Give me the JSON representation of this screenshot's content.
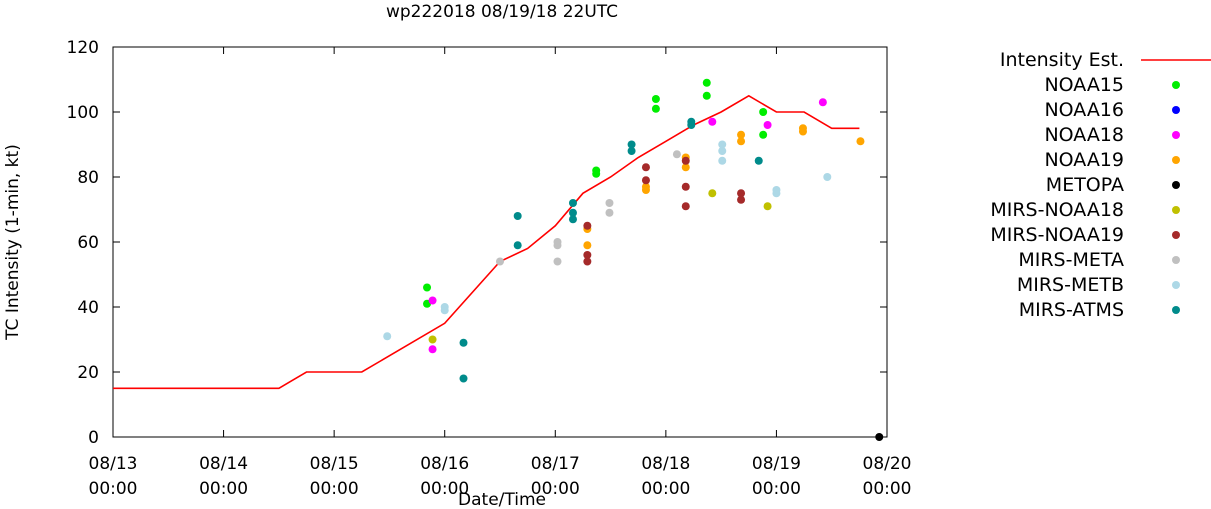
{
  "chart_data": {
    "type": "scatter",
    "title": "wp222018 08/19/18 22UTC",
    "xlabel": "Date/Time",
    "ylabel": "TC Intensity (1-min, kt)",
    "xlim": [
      0,
      7
    ],
    "ylim": [
      0,
      120
    ],
    "x_unit": "days since 08/13 00:00",
    "yticks": [
      0,
      20,
      40,
      60,
      80,
      100,
      120
    ],
    "xticks": [
      {
        "x": 0,
        "date": "08/13",
        "time": "00:00"
      },
      {
        "x": 1,
        "date": "08/14",
        "time": "00:00"
      },
      {
        "x": 2,
        "date": "08/15",
        "time": "00:00"
      },
      {
        "x": 3,
        "date": "08/16",
        "time": "00:00"
      },
      {
        "x": 4,
        "date": "08/17",
        "time": "00:00"
      },
      {
        "x": 5,
        "date": "08/18",
        "time": "00:00"
      },
      {
        "x": 6,
        "date": "08/19",
        "time": "00:00"
      },
      {
        "x": 7,
        "date": "08/20",
        "time": "00:00"
      }
    ],
    "grid": false,
    "legend_position": "right",
    "line": {
      "name": "Intensity Est.",
      "color": "#ff0000",
      "points": [
        [
          0,
          15
        ],
        [
          1.5,
          15
        ],
        [
          1.75,
          20
        ],
        [
          2.25,
          20
        ],
        [
          3.0,
          35
        ],
        [
          3.5,
          54
        ],
        [
          3.75,
          58
        ],
        [
          4.0,
          65
        ],
        [
          4.25,
          75
        ],
        [
          4.5,
          80
        ],
        [
          4.75,
          86
        ],
        [
          5.0,
          91
        ],
        [
          5.25,
          96
        ],
        [
          5.5,
          100
        ],
        [
          5.75,
          105
        ],
        [
          6.0,
          100
        ],
        [
          6.25,
          100
        ],
        [
          6.5,
          95
        ],
        [
          6.75,
          95
        ]
      ]
    },
    "series": [
      {
        "name": "NOAA15",
        "color": "#00ee00",
        "points": [
          [
            2.84,
            46
          ],
          [
            2.84,
            41
          ],
          [
            4.37,
            82
          ],
          [
            4.37,
            81
          ],
          [
            4.91,
            104
          ],
          [
            4.91,
            101
          ],
          [
            5.37,
            109
          ],
          [
            5.37,
            105
          ],
          [
            5.88,
            100
          ],
          [
            5.88,
            93
          ]
        ]
      },
      {
        "name": "NOAA16",
        "color": "#0000ff",
        "points": []
      },
      {
        "name": "NOAA18",
        "color": "#ff00ff",
        "points": [
          [
            2.89,
            42
          ],
          [
            2.89,
            27
          ],
          [
            5.42,
            97
          ],
          [
            5.92,
            96
          ],
          [
            6.42,
            103
          ]
        ]
      },
      {
        "name": "NOAA19",
        "color": "#ffa500",
        "points": [
          [
            4.29,
            64
          ],
          [
            4.29,
            59
          ],
          [
            4.82,
            77
          ],
          [
            4.82,
            76
          ],
          [
            5.18,
            86
          ],
          [
            5.18,
            83
          ],
          [
            5.68,
            93
          ],
          [
            5.68,
            91
          ],
          [
            6.24,
            95
          ],
          [
            6.24,
            94
          ],
          [
            6.76,
            91
          ]
        ]
      },
      {
        "name": "METOPA",
        "color": "#000000",
        "points": [
          [
            6.93,
            0
          ]
        ]
      },
      {
        "name": "MIRS-NOAA18",
        "color": "#c0c000",
        "points": [
          [
            2.89,
            30
          ],
          [
            5.42,
            75
          ],
          [
            5.92,
            71
          ]
        ]
      },
      {
        "name": "MIRS-NOAA19",
        "color": "#a52a2a",
        "points": [
          [
            4.29,
            65
          ],
          [
            4.29,
            56
          ],
          [
            4.29,
            54
          ],
          [
            4.82,
            83
          ],
          [
            4.82,
            79
          ],
          [
            5.18,
            85
          ],
          [
            5.18,
            77
          ],
          [
            5.18,
            71
          ],
          [
            5.68,
            75
          ],
          [
            5.68,
            73
          ]
        ]
      },
      {
        "name": "MIRS-META",
        "color": "#c0c0c0",
        "points": [
          [
            3.5,
            54
          ],
          [
            4.02,
            60
          ],
          [
            4.02,
            59
          ],
          [
            4.02,
            54
          ],
          [
            4.49,
            72
          ],
          [
            4.49,
            69
          ],
          [
            5.1,
            87
          ]
        ]
      },
      {
        "name": "MIRS-METB",
        "color": "#add8e6",
        "points": [
          [
            2.48,
            31
          ],
          [
            3.0,
            40
          ],
          [
            3.0,
            39
          ],
          [
            5.51,
            90
          ],
          [
            5.51,
            88
          ],
          [
            5.51,
            85
          ],
          [
            6.0,
            76
          ],
          [
            6.0,
            75
          ],
          [
            6.46,
            80
          ]
        ]
      },
      {
        "name": "MIRS-ATMS",
        "color": "#008b8b",
        "points": [
          [
            3.17,
            29
          ],
          [
            3.17,
            18
          ],
          [
            3.66,
            68
          ],
          [
            3.66,
            59
          ],
          [
            4.16,
            72
          ],
          [
            4.16,
            69
          ],
          [
            4.16,
            67
          ],
          [
            4.69,
            90
          ],
          [
            4.69,
            88
          ],
          [
            5.23,
            97
          ],
          [
            5.23,
            96
          ],
          [
            5.84,
            85
          ]
        ]
      }
    ]
  }
}
